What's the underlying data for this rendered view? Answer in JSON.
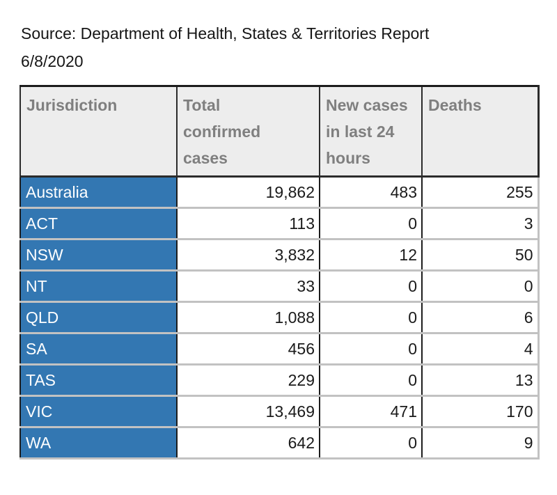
{
  "caption": {
    "text": "Source: Department of Health, States & Territories Report\n6/8/2020"
  },
  "table": {
    "columns": {
      "jurisdiction": "Jurisdiction",
      "total": "Total\nconfirmed\ncases",
      "new24": "New cases\nin last 24\nhours",
      "deaths": "Deaths"
    },
    "rows": [
      {
        "jurisdiction": "Australia",
        "total": "19,862",
        "new24": "483",
        "deaths": "255"
      },
      {
        "jurisdiction": "ACT",
        "total": "113",
        "new24": "0",
        "deaths": "3"
      },
      {
        "jurisdiction": "NSW",
        "total": "3,832",
        "new24": "12",
        "deaths": "50"
      },
      {
        "jurisdiction": "NT",
        "total": "33",
        "new24": "0",
        "deaths": "0"
      },
      {
        "jurisdiction": "QLD",
        "total": "1,088",
        "new24": "0",
        "deaths": "6"
      },
      {
        "jurisdiction": "SA",
        "total": "456",
        "new24": "0",
        "deaths": "4"
      },
      {
        "jurisdiction": "TAS",
        "total": "229",
        "new24": "0",
        "deaths": "13"
      },
      {
        "jurisdiction": "VIC",
        "total": "13,469",
        "new24": "471",
        "deaths": "170"
      },
      {
        "jurisdiction": "WA",
        "total": "642",
        "new24": "0",
        "deaths": "9"
      }
    ]
  },
  "chart_data": {
    "type": "table",
    "title": "Source: Department of Health, States & Territories Report 6/8/2020",
    "columns": [
      "Jurisdiction",
      "Total confirmed cases",
      "New cases in last 24 hours",
      "Deaths"
    ],
    "rows": [
      [
        "Australia",
        19862,
        483,
        255
      ],
      [
        "ACT",
        113,
        0,
        3
      ],
      [
        "NSW",
        3832,
        12,
        50
      ],
      [
        "NT",
        33,
        0,
        0
      ],
      [
        "QLD",
        1088,
        0,
        6
      ],
      [
        "SA",
        456,
        0,
        4
      ],
      [
        "TAS",
        229,
        0,
        13
      ],
      [
        "VIC",
        13469,
        471,
        170
      ],
      [
        "WA",
        642,
        0,
        9
      ]
    ]
  },
  "colors": {
    "row_header_bg": "#3377b2",
    "row_header_text": "#ffffff",
    "column_header_bg": "#ededed",
    "column_header_text": "#7f7f7f",
    "dark_border": "#1c1c1c",
    "light_border": "#c2c2c2",
    "value_text": "#1a1a1a"
  }
}
